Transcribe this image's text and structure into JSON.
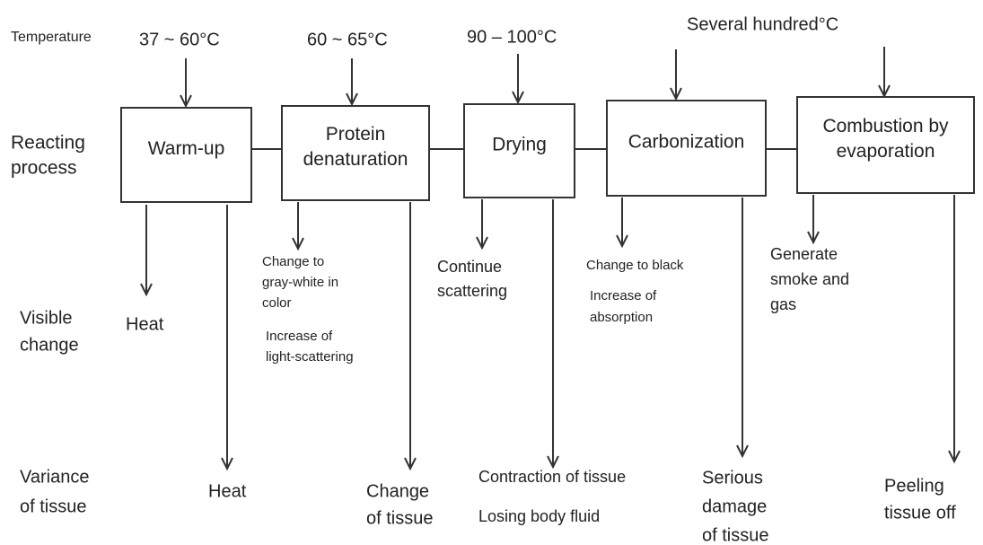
{
  "row_labels": [
    [
      "Temperature"
    ],
    [
      "Reacting",
      "process"
    ],
    [
      "Visible",
      "change"
    ],
    [
      "Variance",
      "of tissue"
    ]
  ],
  "temperatures": [
    "37 ~ 60°C",
    "60 ~ 65°C",
    "90 – 100°C",
    "Several hundred°C"
  ],
  "stages": [
    {
      "name": [
        "Warm-up"
      ],
      "visible": [
        [
          "Heat"
        ]
      ],
      "tissue": [
        [
          "Heat"
        ]
      ]
    },
    {
      "name": [
        "Protein",
        "denaturation"
      ],
      "visible": [
        [
          "Change to",
          "gray-white in",
          "color"
        ],
        [
          "Increase of",
          "light-scattering"
        ]
      ],
      "tissue": [
        [
          "Change",
          "of tissue"
        ]
      ]
    },
    {
      "name": [
        "Drying"
      ],
      "visible": [
        [
          "Continue",
          "scattering"
        ]
      ],
      "tissue": [
        [
          "Contraction of tissue"
        ],
        [
          "Losing body fluid"
        ]
      ]
    },
    {
      "name": [
        "Carbonization"
      ],
      "visible": [
        [
          "Change to black"
        ],
        [
          "Increase of",
          "absorption"
        ]
      ],
      "tissue": [
        [
          "Serious",
          "damage",
          "of tissue"
        ]
      ]
    },
    {
      "name": [
        "Combustion by",
        "evaporation"
      ],
      "visible": [
        [
          "Generate",
          "smoke and",
          "gas"
        ]
      ],
      "tissue": [
        [
          "Peeling",
          "tissue off"
        ]
      ]
    }
  ]
}
